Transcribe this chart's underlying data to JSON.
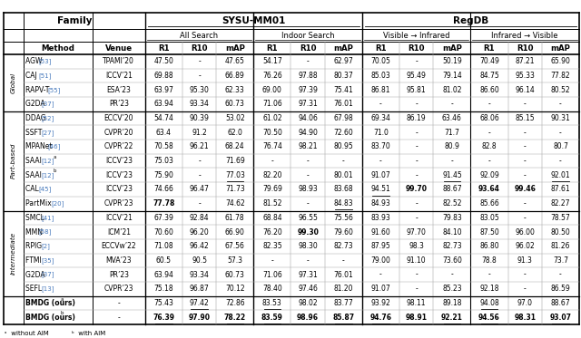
{
  "blue": "#4477BB",
  "rows": [
    {
      "group": "Global",
      "method": "AGW",
      "ref": "53",
      "venue": "TPAMI’20",
      "vals": [
        "47.50",
        "-",
        "47.65",
        "54.17",
        "-",
        "62.97",
        "70.05",
        "-",
        "50.19",
        "70.49",
        "87.21",
        "65.90"
      ],
      "bold_idx": [],
      "ul_idx": [],
      "sup": ""
    },
    {
      "group": "Global",
      "method": "CAJ",
      "ref": "51",
      "venue": "ICCV’21",
      "vals": [
        "69.88",
        "-",
        "66.89",
        "76.26",
        "97.88",
        "80.37",
        "85.03",
        "95.49",
        "79.14",
        "84.75",
        "95.33",
        "77.82"
      ],
      "bold_idx": [],
      "ul_idx": [],
      "sup": ""
    },
    {
      "group": "Global",
      "method": "RAPV-T",
      "ref": "55",
      "venue": "ESA’23",
      "vals": [
        "63.97",
        "95.30",
        "62.33",
        "69.00",
        "97.39",
        "75.41",
        "86.81",
        "95.81",
        "81.02",
        "86.60",
        "96.14",
        "80.52"
      ],
      "bold_idx": [],
      "ul_idx": [],
      "sup": ""
    },
    {
      "group": "Global",
      "method": "G2DA",
      "ref": "37",
      "venue": "PR’23",
      "vals": [
        "63.94",
        "93.34",
        "60.73",
        "71.06",
        "97.31",
        "76.01",
        "-",
        "-",
        "-",
        "-",
        "-",
        "-"
      ],
      "bold_idx": [],
      "ul_idx": [],
      "sup": ""
    },
    {
      "group": "Part-based",
      "method": "DDAG",
      "ref": "52",
      "venue": "ECCV’20",
      "vals": [
        "54.74",
        "90.39",
        "53.02",
        "61.02",
        "94.06",
        "67.98",
        "69.34",
        "86.19",
        "63.46",
        "68.06",
        "85.15",
        "90.31"
      ],
      "bold_idx": [],
      "ul_idx": [],
      "sup": ""
    },
    {
      "group": "Part-based",
      "method": "SSFT",
      "ref": "27",
      "venue": "CVPR’20",
      "vals": [
        "63.4",
        "91.2",
        "62.0",
        "70.50",
        "94.90",
        "72.60",
        "71.0",
        "-",
        "71.7",
        "-",
        "-",
        "-"
      ],
      "bold_idx": [],
      "ul_idx": [],
      "sup": ""
    },
    {
      "group": "Part-based",
      "method": "MPANet",
      "ref": "46",
      "venue": "CVPR’22",
      "vals": [
        "70.58",
        "96.21",
        "68.24",
        "76.74",
        "98.21",
        "80.95",
        "83.70",
        "-",
        "80.9",
        "82.8",
        "-",
        "80.7"
      ],
      "bold_idx": [],
      "ul_idx": [],
      "sup": ""
    },
    {
      "group": "Part-based",
      "method": "SAAI",
      "ref": "12",
      "venue": "ICCV’23",
      "vals": [
        "75.03",
        "-",
        "71.69",
        "-",
        "-",
        "-",
        "-",
        "-",
        "-",
        "-",
        "-",
        "-"
      ],
      "bold_idx": [],
      "ul_idx": [],
      "sup": "a"
    },
    {
      "group": "Part-based",
      "method": "SAAI",
      "ref": "12",
      "venue": "ICCV’23",
      "vals": [
        "75.90",
        "-",
        "77.03",
        "82.20",
        "-",
        "80.01",
        "91.07",
        "-",
        "91.45",
        "92.09",
        "-",
        "92.01"
      ],
      "bold_idx": [],
      "ul_idx": [
        2,
        8,
        11
      ],
      "sup": "b"
    },
    {
      "group": "Part-based",
      "method": "CAL",
      "ref": "45",
      "venue": "ICCV’23",
      "vals": [
        "74.66",
        "96.47",
        "71.73",
        "79.69",
        "98.93",
        "83.68",
        "94.51",
        "99.70",
        "88.67",
        "93.64",
        "99.46",
        "87.61"
      ],
      "bold_idx": [
        7,
        9,
        10
      ],
      "ul_idx": [
        6
      ],
      "sup": ""
    },
    {
      "group": "Part-based",
      "method": "PartMix",
      "ref": "20",
      "venue": "CVPR’23",
      "vals": [
        "77.78",
        "-",
        "74.62",
        "81.52",
        "-",
        "84.83",
        "84.93",
        "-",
        "82.52",
        "85.66",
        "-",
        "82.27"
      ],
      "bold_idx": [
        0
      ],
      "ul_idx": [
        5
      ],
      "sup": ""
    },
    {
      "group": "Intermediate",
      "method": "SMCL",
      "ref": "41",
      "venue": "ICCV’21",
      "vals": [
        "67.39",
        "92.84",
        "61.78",
        "68.84",
        "96.55",
        "75.56",
        "83.93",
        "-",
        "79.83",
        "83.05",
        "-",
        "78.57"
      ],
      "bold_idx": [],
      "ul_idx": [],
      "sup": ""
    },
    {
      "group": "Intermediate",
      "method": "MMN",
      "ref": "58",
      "venue": "ICM’21",
      "vals": [
        "70.60",
        "96.20",
        "66.90",
        "76.20",
        "99.30",
        "79.60",
        "91.60",
        "97.70",
        "84.10",
        "87.50",
        "96.00",
        "80.50"
      ],
      "bold_idx": [
        4
      ],
      "ul_idx": [],
      "sup": ""
    },
    {
      "group": "Intermediate",
      "method": "RPIG",
      "ref": "2",
      "venue": "ECCVw’22",
      "vals": [
        "71.08",
        "96.42",
        "67.56",
        "82.35",
        "98.30",
        "82.73",
        "87.95",
        "98.3",
        "82.73",
        "86.80",
        "96.02",
        "81.26"
      ],
      "bold_idx": [],
      "ul_idx": [],
      "sup": ""
    },
    {
      "group": "Intermediate",
      "method": "FTMI",
      "ref": "35",
      "venue": "MVA’23",
      "vals": [
        "60.5",
        "90.5",
        "57.3",
        "-",
        "-",
        "-",
        "79.00",
        "91.10",
        "73.60",
        "78.8",
        "91.3",
        "73.7"
      ],
      "bold_idx": [],
      "ul_idx": [],
      "sup": ""
    },
    {
      "group": "Intermediate",
      "method": "G2DA",
      "ref": "37",
      "venue": "PR’23",
      "vals": [
        "63.94",
        "93.34",
        "60.73",
        "71.06",
        "97.31",
        "76.01",
        "-",
        "-",
        "-",
        "-",
        "-",
        "-"
      ],
      "bold_idx": [],
      "ul_idx": [],
      "sup": ""
    },
    {
      "group": "Intermediate",
      "method": "SEFL",
      "ref": "13",
      "venue": "CVPR’23",
      "vals": [
        "75.18",
        "96.87",
        "70.12",
        "78.40",
        "97.46",
        "81.20",
        "91.07",
        "-",
        "85.23",
        "92.18",
        "-",
        "86.59"
      ],
      "bold_idx": [],
      "ul_idx": [],
      "sup": ""
    },
    {
      "group": "Ours",
      "method": "BMDG (ours)",
      "ref": "",
      "venue": "-",
      "vals": [
        "75.43",
        "97.42",
        "72.86",
        "83.53",
        "98.02",
        "83.77",
        "93.92",
        "98.11",
        "89.18",
        "94.08",
        "97.0",
        "88.67"
      ],
      "bold_idx": [],
      "ul_idx": [
        1,
        3,
        9
      ],
      "sup": "a"
    },
    {
      "group": "Ours",
      "method": "BMDG (ours)",
      "ref": "",
      "venue": "-",
      "vals": [
        "76.39",
        "97.90",
        "78.22",
        "83.59",
        "98.96",
        "85.87",
        "94.76",
        "98.91",
        "92.21",
        "94.56",
        "98.31",
        "93.07"
      ],
      "bold_idx": [
        0,
        1,
        2,
        3,
        4,
        5,
        6,
        7,
        8,
        9,
        10,
        11
      ],
      "ul_idx": [
        0,
        2,
        3,
        5,
        6,
        8,
        9,
        11
      ],
      "sup": "b"
    }
  ]
}
